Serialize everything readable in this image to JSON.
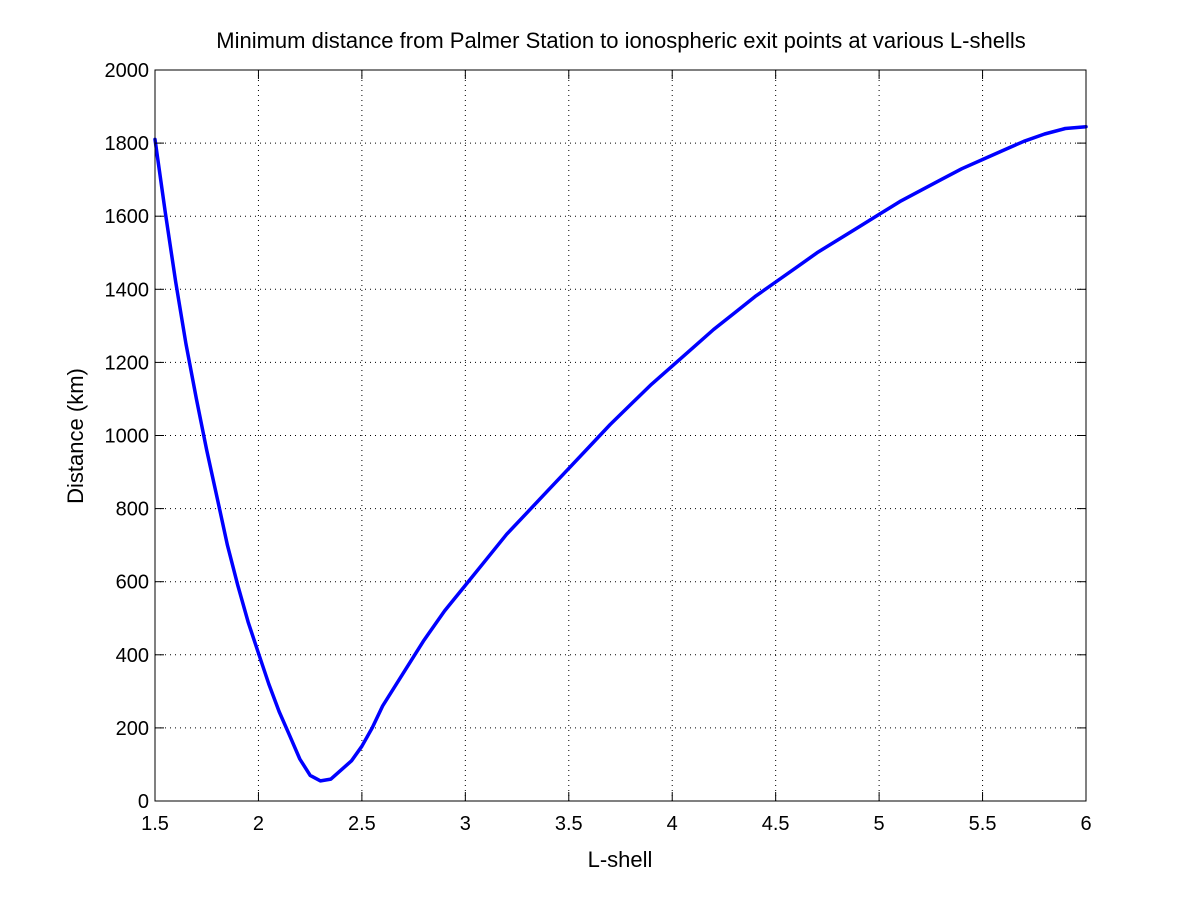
{
  "chart_data": {
    "type": "line",
    "title": "Minimum distance from Palmer Station to ionospheric exit points at various L-shells",
    "xlabel": "L-shell",
    "ylabel": "Distance (km)",
    "xlim": [
      1.5,
      6
    ],
    "ylim": [
      0,
      2000
    ],
    "xticks": [
      "1.5",
      "2",
      "2.5",
      "3",
      "3.5",
      "4",
      "4.5",
      "5",
      "5.5",
      "6"
    ],
    "yticks": [
      "0",
      "200",
      "400",
      "600",
      "800",
      "1000",
      "1200",
      "1400",
      "1600",
      "1800",
      "2000"
    ],
    "grid": true,
    "series": [
      {
        "color": "#0000ff",
        "x": [
          1.5,
          1.55,
          1.6,
          1.65,
          1.7,
          1.75,
          1.8,
          1.85,
          1.9,
          1.95,
          2.0,
          2.05,
          2.1,
          2.15,
          2.2,
          2.25,
          2.3,
          2.35,
          2.4,
          2.45,
          2.5,
          2.55,
          2.6,
          2.7,
          2.8,
          2.9,
          3.0,
          3.1,
          3.2,
          3.3,
          3.4,
          3.5,
          3.6,
          3.7,
          3.8,
          3.9,
          4.0,
          4.1,
          4.2,
          4.3,
          4.4,
          4.5,
          4.6,
          4.7,
          4.8,
          4.9,
          5.0,
          5.1,
          5.2,
          5.3,
          5.4,
          5.5,
          5.6,
          5.7,
          5.8,
          5.9,
          6.0
        ],
        "y": [
          1810,
          1610,
          1420,
          1250,
          1100,
          960,
          830,
          700,
          590,
          490,
          405,
          320,
          245,
          180,
          115,
          70,
          55,
          60,
          85,
          110,
          150,
          200,
          260,
          350,
          440,
          520,
          590,
          660,
          730,
          790,
          850,
          910,
          970,
          1030,
          1085,
          1140,
          1190,
          1240,
          1290,
          1335,
          1380,
          1420,
          1460,
          1500,
          1535,
          1570,
          1605,
          1640,
          1670,
          1700,
          1730,
          1755,
          1780,
          1805,
          1825,
          1840,
          1845
        ]
      }
    ]
  }
}
